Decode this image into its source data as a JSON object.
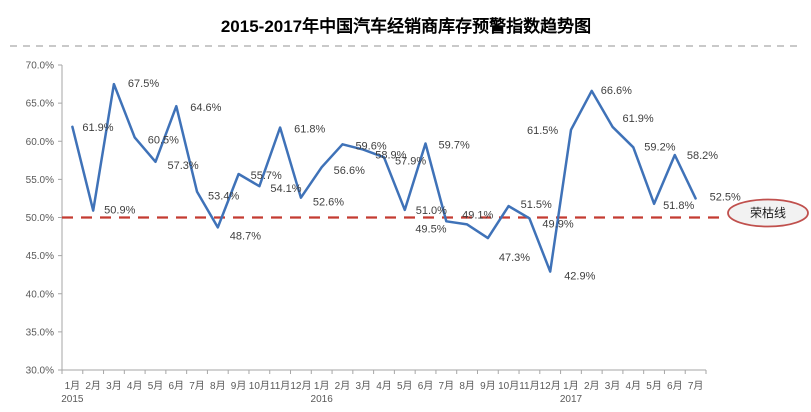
{
  "chart_data": {
    "type": "line",
    "title": "2015-2017年中国汽车经销商库存预警指数趋势图",
    "categories": [
      "1月",
      "2月",
      "3月",
      "4月",
      "5月",
      "6月",
      "7月",
      "8月",
      "9月",
      "10月",
      "11月",
      "12月",
      "1月",
      "2月",
      "3月",
      "4月",
      "5月",
      "6月",
      "7月",
      "8月",
      "9月",
      "10月",
      "11月",
      "12月",
      "1月",
      "2月",
      "3月",
      "4月",
      "5月",
      "6月",
      "7月"
    ],
    "year_markers": [
      {
        "index": 0,
        "label": "2015"
      },
      {
        "index": 12,
        "label": "2016"
      },
      {
        "index": 24,
        "label": "2017"
      }
    ],
    "values": [
      61.9,
      50.9,
      67.5,
      60.5,
      57.3,
      64.6,
      53.4,
      48.7,
      55.7,
      54.1,
      61.8,
      52.6,
      56.6,
      59.6,
      58.9,
      57.9,
      51.0,
      59.7,
      49.5,
      49.1,
      47.3,
      51.5,
      49.9,
      42.9,
      61.5,
      66.6,
      61.9,
      59.2,
      51.8,
      58.2,
      52.5
    ],
    "data_labels": [
      "61.9%",
      "50.9%",
      "67.5%",
      "60.5%",
      "57.3%",
      "64.6%",
      "53.4%",
      "48.7%",
      "55.7%",
      "54.1%",
      "61.8%",
      "52.6%",
      "56.6%",
      "59.6%",
      "58.9%",
      "57.9%",
      "51.0%",
      "59.7%",
      "49.5%",
      "49.1%",
      "47.3%",
      "51.5%",
      "49.9%",
      "42.9%",
      "61.5%",
      "66.6%",
      "61.9%",
      "59.2%",
      "51.8%",
      "58.2%",
      "52.5%"
    ],
    "xlabel": "",
    "ylabel": "",
    "ylim": [
      30,
      70
    ],
    "ytick_step": 5,
    "ytick_labels": [
      "70.0%",
      "65.0%",
      "60.0%",
      "55.0%",
      "50.0%",
      "45.0%",
      "40.0%",
      "35.0%",
      "30.0%"
    ],
    "grid": false,
    "legend": false,
    "reference_line": {
      "value": 50,
      "label": "荣枯线"
    }
  },
  "colors": {
    "line": "#3F72B8",
    "reference_line": "#C43B31",
    "ellipse_border": "#C0504D",
    "ellipse_fill": "#F2F2F2",
    "axis": "#A6A6A6",
    "tick_text": "#595959",
    "data_label_text": "#3F3F3F",
    "title_text": "#000000",
    "divider": "#C9C9C9",
    "ref_label_text": "#1A1A1A"
  }
}
